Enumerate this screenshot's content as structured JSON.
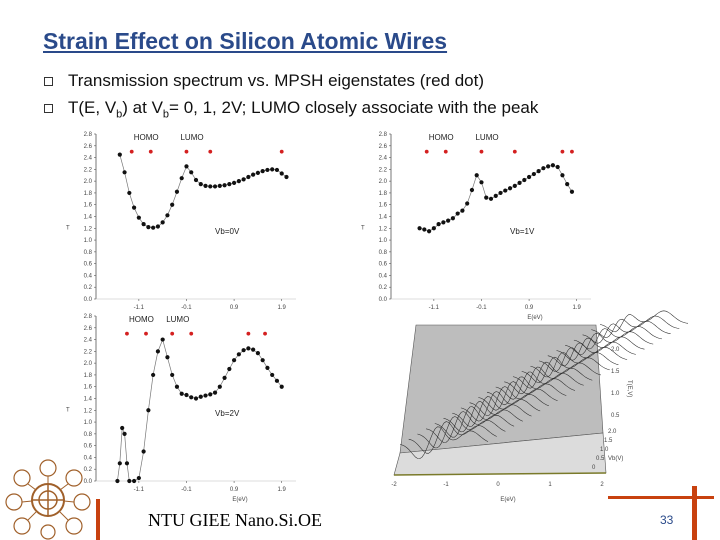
{
  "slide": {
    "title": "Strain Effect on Silicon Atomic Wires",
    "bullets": [
      {
        "pre": "Transmission spectrum vs. MPSH eigenstates (red dot)"
      },
      {
        "pre": "T(E, V",
        "sub1": "b",
        "mid": ") at V",
        "sub2": "b",
        "post": "= 0, 1, 2V; LUMO closely associate with the peak"
      }
    ],
    "footer": "NTU GIEE Nano.Si.OE",
    "page_number": "33"
  },
  "colors": {
    "title": "#2a4a8a",
    "accent_red": "#c8410f",
    "marker": "#111111",
    "eigenstate_dot": "#d42020"
  },
  "chart_data": [
    {
      "type": "scatter",
      "panel": "top-left",
      "ylabel": "T",
      "xlabel": "",
      "x_ticks": [
        "-1.1",
        "-0.1",
        "0.9",
        "1.9"
      ],
      "y_ticks": [
        "0.0",
        "0.2",
        "0.4",
        "0.6",
        "0.8",
        "1.0",
        "1.2",
        "1.4",
        "1.6",
        "1.8",
        "2.0",
        "2.2",
        "2.4",
        "2.6",
        "2.8"
      ],
      "xlim": [
        -2.0,
        2.2
      ],
      "ylim": [
        0,
        2.8
      ],
      "annotations": {
        "homo": "HOMO",
        "lumo": "LUMO",
        "bias": "Vb=0V"
      },
      "eigenstates_x": [
        -1.25,
        -0.85,
        -0.1,
        0.4,
        1.9
      ],
      "eigenstate_y": 2.5,
      "x": [
        -1.5,
        -1.4,
        -1.3,
        -1.2,
        -1.1,
        -1.0,
        -0.9,
        -0.8,
        -0.7,
        -0.6,
        -0.5,
        -0.4,
        -0.3,
        -0.2,
        -0.1,
        0.0,
        0.1,
        0.2,
        0.3,
        0.4,
        0.5,
        0.6,
        0.7,
        0.8,
        0.9,
        1.0,
        1.1,
        1.2,
        1.3,
        1.4,
        1.5,
        1.6,
        1.7,
        1.8,
        1.9,
        2.0
      ],
      "y": [
        2.45,
        2.15,
        1.8,
        1.55,
        1.38,
        1.27,
        1.22,
        1.21,
        1.23,
        1.3,
        1.42,
        1.6,
        1.82,
        2.05,
        2.25,
        2.15,
        2.02,
        1.95,
        1.92,
        1.91,
        1.91,
        1.92,
        1.93,
        1.95,
        1.97,
        2.0,
        2.03,
        2.07,
        2.11,
        2.14,
        2.17,
        2.19,
        2.2,
        2.19,
        2.13,
        2.07
      ]
    },
    {
      "type": "scatter",
      "panel": "top-right",
      "ylabel": "T",
      "xlabel": "E(eV)",
      "x_ticks": [
        "-1.1",
        "-0.1",
        "0.9",
        "1.9"
      ],
      "y_ticks": [
        "0.0",
        "0.2",
        "0.4",
        "0.6",
        "0.8",
        "1.0",
        "1.2",
        "1.4",
        "1.6",
        "1.8",
        "2.0",
        "2.2",
        "2.4",
        "2.6",
        "2.8"
      ],
      "xlim": [
        -2.0,
        2.2
      ],
      "ylim": [
        0,
        2.8
      ],
      "annotations": {
        "homo": "HOMO",
        "lumo": "LUMO",
        "bias": "Vb=1V"
      },
      "eigenstates_x": [
        -1.25,
        -0.85,
        -0.1,
        0.6,
        1.6,
        1.8
      ],
      "eigenstate_y": 2.5,
      "x": [
        -1.4,
        -1.3,
        -1.2,
        -1.1,
        -1.0,
        -0.9,
        -0.8,
        -0.7,
        -0.6,
        -0.5,
        -0.4,
        -0.3,
        -0.2,
        -0.1,
        0.0,
        0.1,
        0.2,
        0.3,
        0.4,
        0.5,
        0.6,
        0.7,
        0.8,
        0.9,
        1.0,
        1.1,
        1.2,
        1.3,
        1.4,
        1.5,
        1.6,
        1.7,
        1.8
      ],
      "y": [
        1.2,
        1.18,
        1.15,
        1.2,
        1.27,
        1.3,
        1.33,
        1.37,
        1.45,
        1.5,
        1.62,
        1.85,
        2.1,
        1.98,
        1.72,
        1.7,
        1.75,
        1.8,
        1.84,
        1.88,
        1.92,
        1.97,
        2.02,
        2.07,
        2.12,
        2.17,
        2.22,
        2.25,
        2.27,
        2.24,
        2.1,
        1.95,
        1.82
      ]
    },
    {
      "type": "scatter",
      "panel": "bottom-left",
      "ylabel": "T",
      "xlabel": "E(eV)",
      "x_ticks": [
        "-1.1",
        "-0.1",
        "0.9",
        "1.9"
      ],
      "y_ticks": [
        "0.0",
        "0.2",
        "0.4",
        "0.6",
        "0.8",
        "1.0",
        "1.2",
        "1.4",
        "1.6",
        "1.8",
        "2.0",
        "2.2",
        "2.4",
        "2.6",
        "2.8"
      ],
      "xlim": [
        -2.0,
        2.2
      ],
      "ylim": [
        0,
        2.8
      ],
      "annotations": {
        "homo": "HOMO",
        "lumo": "LUMO",
        "bias": "Vb=2V"
      },
      "eigenstates_x": [
        -1.35,
        -0.95,
        -0.4,
        0.0,
        1.2,
        1.55
      ],
      "eigenstate_y": 2.5,
      "x": [
        -1.55,
        -1.5,
        -1.45,
        -1.4,
        -1.35,
        -1.3,
        -1.2,
        -1.1,
        -1.0,
        -0.9,
        -0.8,
        -0.7,
        -0.6,
        -0.5,
        -0.4,
        -0.3,
        -0.2,
        -0.1,
        0.0,
        0.1,
        0.2,
        0.3,
        0.4,
        0.5,
        0.6,
        0.7,
        0.8,
        0.9,
        1.0,
        1.1,
        1.2,
        1.3,
        1.4,
        1.5,
        1.6,
        1.7,
        1.8,
        1.9
      ],
      "y": [
        0.0,
        0.3,
        0.9,
        0.8,
        0.3,
        0.0,
        0.0,
        0.05,
        0.5,
        1.2,
        1.8,
        2.2,
        2.4,
        2.1,
        1.8,
        1.6,
        1.48,
        1.46,
        1.42,
        1.4,
        1.43,
        1.45,
        1.47,
        1.5,
        1.6,
        1.75,
        1.9,
        2.05,
        2.15,
        2.22,
        2.25,
        2.23,
        2.17,
        2.05,
        1.92,
        1.8,
        1.7,
        1.6
      ]
    },
    {
      "type": "surface",
      "panel": "bottom-right",
      "title": "",
      "xlabel": "E(eV)",
      "ylabel": "Vb(V)",
      "zlabel": "T(E,V)",
      "x_ticks": [
        "-2",
        "-1",
        "0",
        "1",
        "2"
      ],
      "y_ticks": [
        "0",
        "0.5",
        "1.0",
        "1.5",
        "2.0"
      ],
      "z_ticks": [
        "0.5",
        "1.0",
        "1.5",
        "2.0"
      ],
      "xlim": [
        -2,
        2
      ],
      "ylim": [
        0,
        2
      ],
      "zlim": [
        0,
        2.2
      ]
    }
  ]
}
